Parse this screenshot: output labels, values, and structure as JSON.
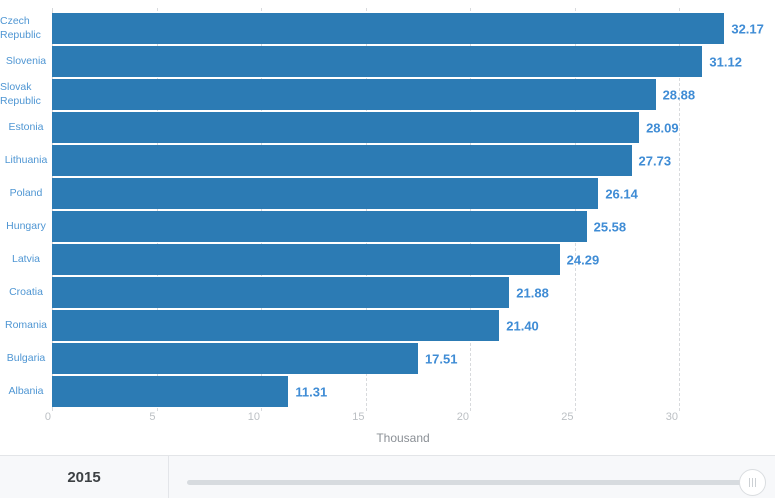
{
  "chart_data": {
    "type": "bar",
    "orientation": "horizontal",
    "title": "",
    "xlabel": "Thousand",
    "ylabel": "",
    "categories": [
      "Czech Republic",
      "Slovenia",
      "Slovak Republic",
      "Estonia",
      "Lithuania",
      "Poland",
      "Hungary",
      "Latvia",
      "Croatia",
      "Romania",
      "Bulgaria",
      "Albania"
    ],
    "values": [
      32.17,
      31.12,
      28.88,
      28.09,
      27.73,
      26.14,
      25.58,
      24.29,
      21.88,
      21.4,
      17.51,
      11.31
    ],
    "value_labels": [
      "32.17",
      "31.12",
      "28.88",
      "28.09",
      "27.73",
      "26.14",
      "25.58",
      "24.29",
      "21.88",
      "21.40",
      "17.51",
      "11.31"
    ],
    "xticks": [
      0,
      5,
      10,
      15,
      20,
      25,
      30
    ],
    "xlim": [
      0,
      34.6
    ],
    "grid": "dashed-vertical",
    "legend": "none",
    "colors": {
      "bar": "#2c7bb4",
      "category_label": "#4f96d3",
      "value_label": "#3f8cd5",
      "tick_label": "#bcc0c4",
      "axis_title": "#8b9096",
      "gridline": "#d8dadd"
    }
  },
  "timeline": {
    "year": "2015",
    "grip_icon": "vertical-grip"
  }
}
